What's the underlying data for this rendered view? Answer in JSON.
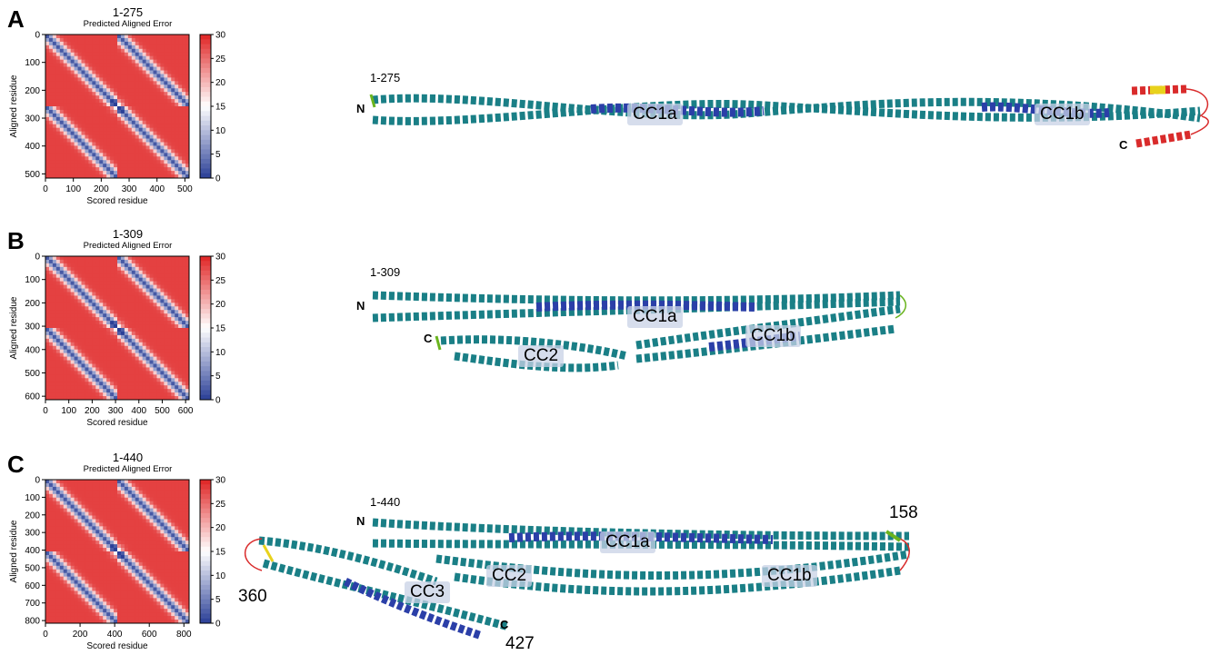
{
  "figure": {
    "panels": [
      {
        "letter": "A",
        "construct": "1-275",
        "heatmap": {
          "title": "1-275",
          "subtitle": "Predicted Aligned Error",
          "xlabel": "Scored residue",
          "ylabel": "Aligned residue",
          "x_ticks": [
            "0",
            "100",
            "200",
            "300",
            "400",
            "500"
          ],
          "y_ticks": [
            "0",
            "100",
            "200",
            "300",
            "400",
            "500"
          ],
          "colorbar_ticks": [
            "30",
            "25",
            "20",
            "15",
            "10",
            "5",
            "0"
          ]
        },
        "structure": {
          "construct_label": "1-275",
          "n_label": "N",
          "c_label": "C",
          "regions": [
            "CC1a",
            "CC1b"
          ]
        }
      },
      {
        "letter": "B",
        "construct": "1-309",
        "heatmap": {
          "title": "1-309",
          "subtitle": "Predicted Aligned Error",
          "xlabel": "Scored residue",
          "ylabel": "Aligned residue",
          "x_ticks": [
            "0",
            "100",
            "200",
            "300",
            "400",
            "500",
            "600"
          ],
          "y_ticks": [
            "0",
            "100",
            "200",
            "300",
            "400",
            "500",
            "600"
          ],
          "colorbar_ticks": [
            "30",
            "25",
            "20",
            "15",
            "10",
            "5",
            "0"
          ]
        },
        "structure": {
          "construct_label": "1-309",
          "n_label": "N",
          "c_label": "C",
          "regions": [
            "CC1a",
            "CC1b",
            "CC2"
          ]
        }
      },
      {
        "letter": "C",
        "construct": "1-440",
        "heatmap": {
          "title": "1-440",
          "subtitle": "Predicted Aligned Error",
          "xlabel": "Scored residue",
          "ylabel": "Aligned residue",
          "x_ticks": [
            "0",
            "200",
            "400",
            "600",
            "800"
          ],
          "y_ticks": [
            "0",
            "100",
            "200",
            "300",
            "400",
            "500",
            "600",
            "700",
            "800"
          ],
          "colorbar_ticks": [
            "30",
            "25",
            "20",
            "15",
            "10",
            "5",
            "0"
          ]
        },
        "structure": {
          "construct_label": "1-440",
          "n_label": "N",
          "c_label": "C",
          "regions": [
            "CC1a",
            "CC1b",
            "CC2",
            "CC3"
          ],
          "residue_markers": [
            "158",
            "360",
            "427"
          ]
        }
      }
    ],
    "colors": {
      "pae_low": "#2a3f97",
      "pae_mid": "#ffffff",
      "pae_high": "#e02424",
      "helix_teal": "#1a7f86",
      "helix_blue": "#2b3fa8",
      "helix_cyan": "#35b6c4",
      "helix_red": "#d92b2b",
      "helix_yellow": "#e8d21c",
      "helix_green": "#6ab41e"
    }
  }
}
